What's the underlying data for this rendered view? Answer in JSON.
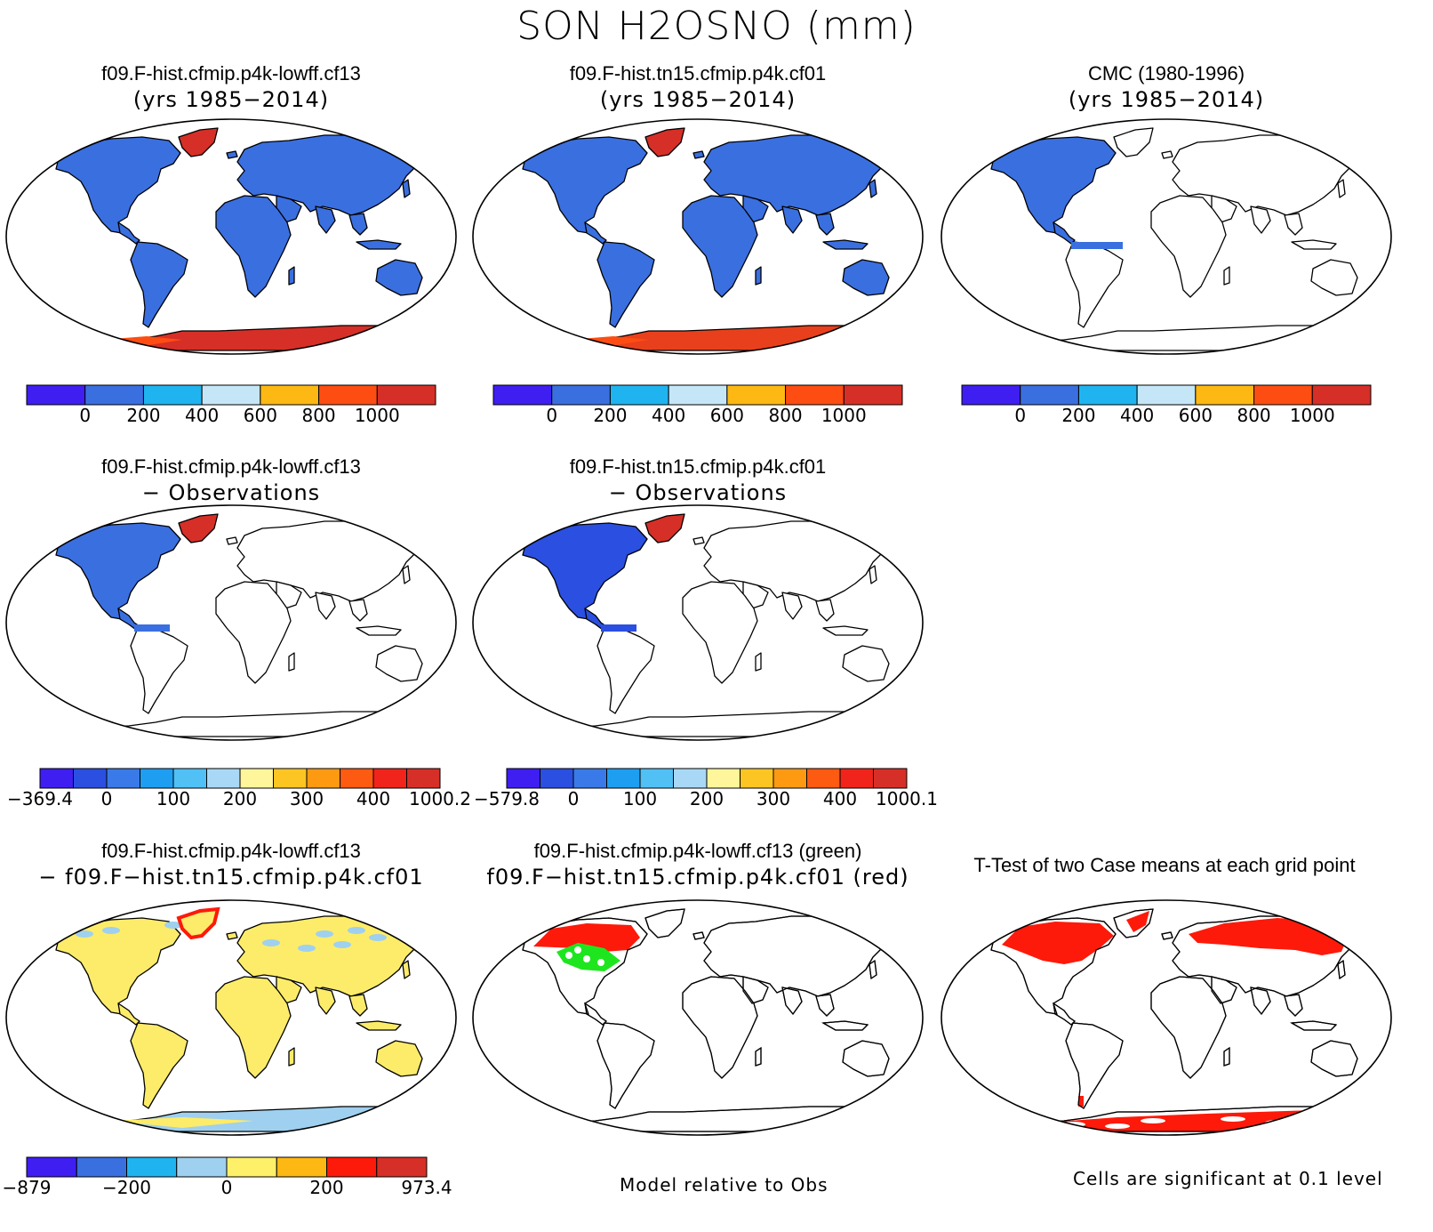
{
  "title": "SON H2OSNO (mm)",
  "panels": [
    {
      "id": "p1",
      "title1": "f09.F-hist.cfmip.p4k-lowff.cf13",
      "title2": "(yrs 1985−2014)",
      "mode": "field",
      "greenland": "#d62f27",
      "antarctica": "#d62f27",
      "colorbar": "cb_field"
    },
    {
      "id": "p2",
      "title1": "f09.F-hist.tn15.cfmip.p4k.cf01",
      "title2": "(yrs 1985−2014)",
      "mode": "field",
      "greenland": "#d62f27",
      "antarctica": "#e8401c",
      "colorbar": "cb_field"
    },
    {
      "id": "p3",
      "title1": "CMC (1980-1996)",
      "title2": "(yrs 1985−2014)",
      "mode": "obs",
      "colorbar": "cb_field"
    },
    {
      "id": "p4",
      "title1": "f09.F-hist.cfmip.p4k-lowff.cf13",
      "title2": "− Observations",
      "mode": "diffobs",
      "na": "#3a6fe0",
      "colorbar": "cb_diff1"
    },
    {
      "id": "p5",
      "title1": "f09.F-hist.tn15.cfmip.p4k.cf01",
      "title2": "− Observations",
      "mode": "diffobs",
      "na": "#2b4fe0",
      "colorbar": "cb_diff2"
    },
    {
      "id": "p7",
      "title1": "f09.F-hist.cfmip.p4k-lowff.cf13",
      "title2": "− f09.F−hist.tn15.cfmip.p4k.cf01",
      "mode": "casediff",
      "colorbar": "cb_case"
    },
    {
      "id": "p8",
      "title1": "f09.F-hist.cfmip.p4k-lowff.cf13 (green)",
      "title2": "f09.F−hist.tn15.cfmip.p4k.cf01 (red)",
      "mode": "greenred"
    },
    {
      "id": "p9",
      "title1": "T-Test of two Case means at each grid point",
      "title2": "",
      "mode": "ttest"
    }
  ],
  "colorbars": {
    "cb_field": {
      "colors": [
        "#3f1ef2",
        "#3a6fe0",
        "#1fb4f0",
        "#c5e6f7",
        "#fdb813",
        "#fd4d12",
        "#d62f27"
      ],
      "labels": [
        "0",
        "200",
        "400",
        "600",
        "800",
        "1000"
      ]
    },
    "cb_diff1": {
      "colors": [
        "#3f1ef2",
        "#2b4fe0",
        "#3a7ae8",
        "#1e9ef0",
        "#50c0f5",
        "#a8d8f5",
        "#fff59a",
        "#fdc522",
        "#fd9a12",
        "#fd5a12",
        "#f0241a",
        "#d62f27"
      ],
      "labels": [
        "−369.4",
        "0",
        "100",
        "200",
        "300",
        "400",
        "1000.2"
      ]
    },
    "cb_diff2": {
      "colors": [
        "#3f1ef2",
        "#2b4fe0",
        "#3a7ae8",
        "#1e9ef0",
        "#50c0f5",
        "#a8d8f5",
        "#fff59a",
        "#fdc522",
        "#fd9a12",
        "#fd5a12",
        "#f0241a",
        "#d62f27"
      ],
      "labels": [
        "−579.8",
        "0",
        "100",
        "200",
        "300",
        "400",
        "1000.1"
      ]
    },
    "cb_case": {
      "colors": [
        "#3f1ef2",
        "#3a6fe0",
        "#1fb4f0",
        "#9fd0ef",
        "#fff06a",
        "#fdb813",
        "#fd1a0a",
        "#d62f27"
      ],
      "labels": [
        "−879",
        "−200",
        "0",
        "200",
        "973.4"
      ]
    }
  },
  "notes": {
    "model_relative": "Model relative to Obs",
    "significance": "Cells are significant at 0.1 level"
  },
  "colors": {
    "land_blue": "#3a6fe0",
    "case_yellow": "#fdec6a",
    "case_lightblue": "#9fd0ef",
    "green": "#1ee61e",
    "red": "#fd1a0a"
  }
}
